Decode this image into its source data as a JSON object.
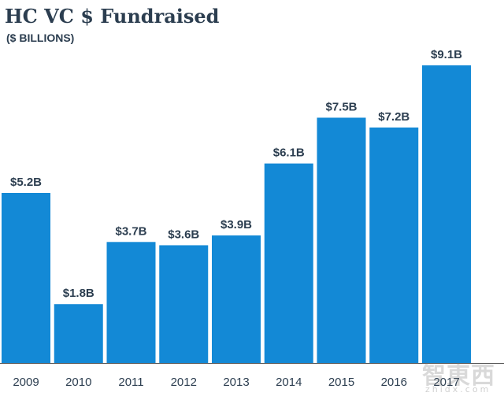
{
  "title": "HC VC $ Fundraised",
  "subtitle": "($ BILLIONS)",
  "colors": {
    "bar": "#1389d6",
    "text": "#2c3e50",
    "axis": "#555555"
  },
  "watermark": {
    "cn": "智東西",
    "en": "zhidx.com"
  },
  "chart_data": {
    "type": "bar",
    "title": "HC VC $ Fundraised",
    "ylabel": "($ BILLIONS)",
    "xlabel": "",
    "categories": [
      "2009",
      "2010",
      "2011",
      "2012",
      "2013",
      "2014",
      "2015",
      "2016",
      "2017"
    ],
    "values": [
      5.2,
      1.8,
      3.7,
      3.6,
      3.9,
      6.1,
      7.5,
      7.2,
      9.1
    ],
    "labels": [
      "$5.2B",
      "$1.8B",
      "$3.7B",
      "$3.6B",
      "$3.9B",
      "$6.1B",
      "$7.5B",
      "$7.2B",
      "$9.1B"
    ],
    "ylim": [
      0,
      9.1
    ],
    "grid": false,
    "legend": "none"
  }
}
